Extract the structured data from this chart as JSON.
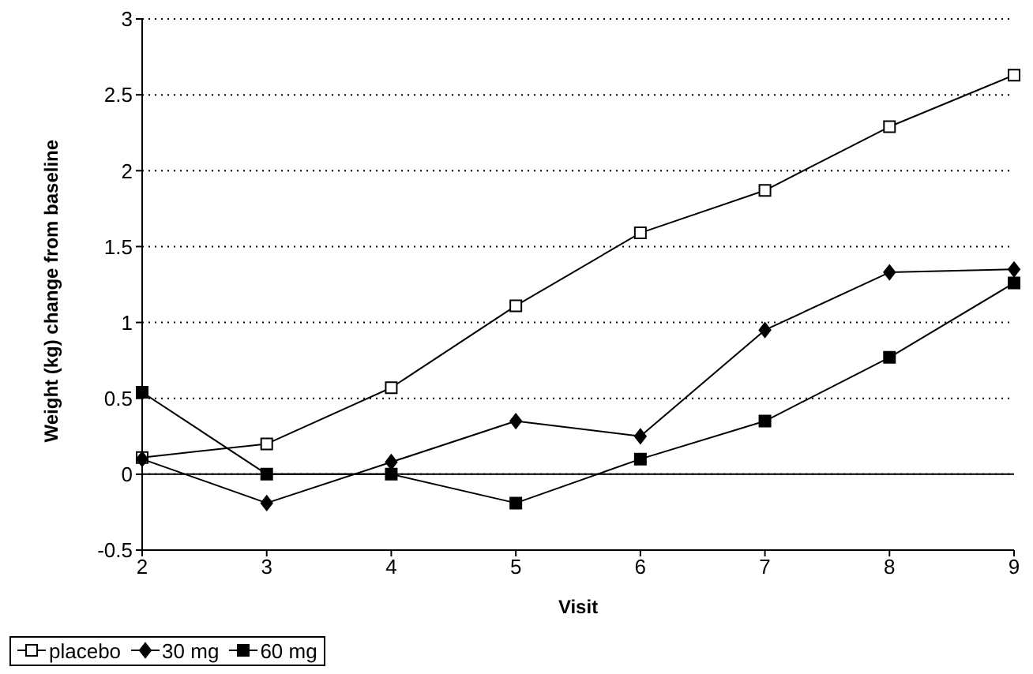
{
  "chart_data": {
    "type": "line",
    "xlabel": "Visit",
    "ylabel": "Weight (kg) change from baseline",
    "x": [
      2,
      3,
      4,
      5,
      6,
      7,
      8,
      9
    ],
    "series": [
      {
        "name": "placebo",
        "color": "#000000",
        "marker": "square",
        "values": [
          0.11,
          0.2,
          0.57,
          1.11,
          1.59,
          1.87,
          2.29,
          2.63
        ]
      },
      {
        "name": "30 mg",
        "color": "#000000",
        "marker": "diamond",
        "values": [
          0.1,
          -0.19,
          0.08,
          0.35,
          0.25,
          0.95,
          1.33,
          1.35
        ]
      },
      {
        "name": "60 mg",
        "color": "#000000",
        "marker": "square",
        "values": [
          0.54,
          0,
          0,
          -0.19,
          0.1,
          0.35,
          0.77,
          1.26
        ]
      }
    ],
    "xlim": [
      2,
      9
    ],
    "xticks": [
      2,
      3,
      4,
      5,
      6,
      7,
      8,
      9
    ],
    "ylim": [
      -0.5,
      3
    ],
    "yticks": [
      -0.5,
      0,
      0.5,
      1,
      1.5,
      2,
      2.5,
      3
    ],
    "ref_lines": [
      {
        "axis": "y",
        "value": 0,
        "color": "#000000",
        "line_style": "solid"
      }
    ],
    "grid": "y",
    "line_style": "solid",
    "legend": "bottom left"
  }
}
